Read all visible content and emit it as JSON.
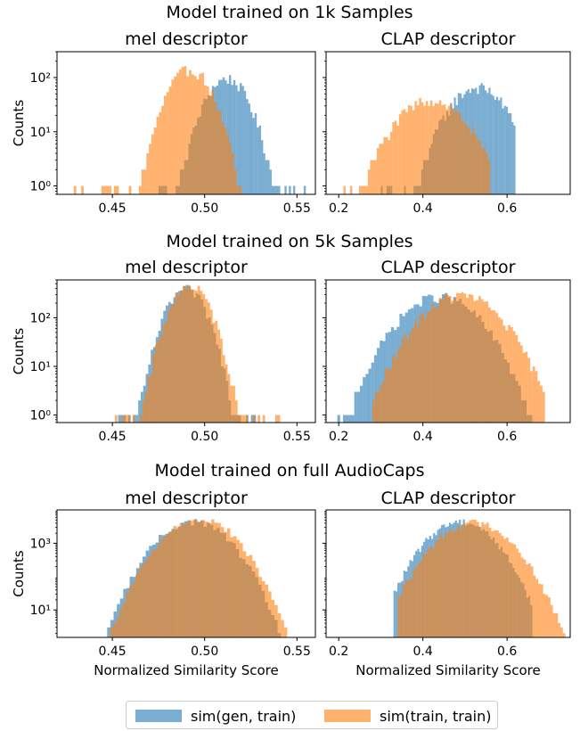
{
  "legend": {
    "gen_label": "sim(gen, train)",
    "train_label": "sim(train, train)"
  },
  "colors": {
    "gen": "#1f77b4",
    "train": "#ff7f0e",
    "overlap": "#a08062"
  },
  "chart_data": [
    {
      "type": "histogram",
      "row_title": "Model trained on 1k Samples",
      "title": "mel descriptor",
      "xlabel": "",
      "ylabel": "Counts",
      "y_scale": "log",
      "xlim": [
        0.42,
        0.56
      ],
      "ylim": [
        0.7,
        300
      ],
      "xticks": [
        0.45,
        0.5,
        0.55
      ],
      "xtick_labels": [
        "0.45",
        "0.50",
        "0.55"
      ],
      "yticks": [
        1,
        10,
        100
      ],
      "ytick_labels": [
        "10⁰",
        "10¹",
        "10²"
      ],
      "series": [
        {
          "name": "sim(gen, train)",
          "dist": "normal",
          "mean": 0.512,
          "sd": 0.0085,
          "peak": 95,
          "min": 0.475,
          "max": 0.556
        },
        {
          "name": "sim(train, train)",
          "dist": "normal",
          "mean": 0.492,
          "sd": 0.0085,
          "peak": 140,
          "min": 0.425,
          "max": 0.52
        }
      ]
    },
    {
      "type": "histogram",
      "title": "CLAP descriptor",
      "xlabel": "",
      "ylabel": "",
      "y_scale": "log",
      "xlim": [
        0.17,
        0.75
      ],
      "ylim": [
        0.7,
        300
      ],
      "xticks": [
        0.2,
        0.4,
        0.6
      ],
      "xtick_labels": [
        "0.2",
        "0.4",
        "0.6"
      ],
      "yticks": [
        1,
        10,
        100
      ],
      "ytick_labels": [
        "",
        "",
        ""
      ],
      "series": [
        {
          "name": "sim(gen, train)",
          "dist": "normal",
          "mean": 0.53,
          "sd": 0.05,
          "peak": 65,
          "min": 0.3,
          "max": 0.62
        },
        {
          "name": "sim(train, train)",
          "dist": "normal",
          "mean": 0.42,
          "sd": 0.06,
          "peak": 38,
          "min": 0.19,
          "max": 0.56
        }
      ]
    },
    {
      "type": "histogram",
      "row_title": "Model trained on 5k Samples",
      "title": "mel descriptor",
      "xlabel": "",
      "ylabel": "Counts",
      "y_scale": "log",
      "xlim": [
        0.42,
        0.56
      ],
      "ylim": [
        0.7,
        600
      ],
      "xticks": [
        0.45,
        0.5,
        0.55
      ],
      "xtick_labels": [
        "0.45",
        "0.50",
        "0.55"
      ],
      "yticks": [
        1,
        10,
        100
      ],
      "ytick_labels": [
        "10⁰",
        "10¹",
        "10²"
      ],
      "series": [
        {
          "name": "sim(gen, train)",
          "dist": "normal",
          "mean": 0.49,
          "sd": 0.0075,
          "peak": 380,
          "min": 0.445,
          "max": 0.54
        },
        {
          "name": "sim(train, train)",
          "dist": "normal",
          "mean": 0.492,
          "sd": 0.0075,
          "peak": 450,
          "min": 0.45,
          "max": 0.545
        }
      ]
    },
    {
      "type": "histogram",
      "title": "CLAP descriptor",
      "xlabel": "",
      "ylabel": "",
      "y_scale": "log",
      "xlim": [
        0.17,
        0.75
      ],
      "ylim": [
        0.7,
        600
      ],
      "xticks": [
        0.2,
        0.4,
        0.6
      ],
      "xtick_labels": [
        "0.2",
        "0.4",
        "0.6"
      ],
      "yticks": [
        1,
        10,
        100
      ],
      "ytick_labels": [
        "",
        "",
        ""
      ],
      "series": [
        {
          "name": "sim(gen, train)",
          "dist": "normal",
          "mean": 0.44,
          "sd": 0.065,
          "peak": 270,
          "min": 0.19,
          "max": 0.66
        },
        {
          "name": "sim(train, train)",
          "dist": "normal",
          "mean": 0.49,
          "sd": 0.065,
          "peak": 290,
          "min": 0.28,
          "max": 0.69
        }
      ]
    },
    {
      "type": "histogram",
      "row_title": "Model trained on full AudioCaps",
      "title": "mel descriptor",
      "xlabel": "Normalized Similarity Score",
      "ylabel": "Counts",
      "y_scale": "log",
      "xlim": [
        0.42,
        0.56
      ],
      "ylim": [
        1.5,
        10000
      ],
      "xticks": [
        0.45,
        0.5,
        0.55
      ],
      "xtick_labels": [
        "0.45",
        "0.50",
        "0.55"
      ],
      "yticks": [
        10,
        1000
      ],
      "ytick_labels": [
        "10¹",
        "10³"
      ],
      "series": [
        {
          "name": "sim(gen, train)",
          "dist": "normal",
          "mean": 0.494,
          "sd": 0.012,
          "peak": 4500,
          "min": 0.428,
          "max": 0.55
        },
        {
          "name": "sim(train, train)",
          "dist": "normal",
          "mean": 0.497,
          "sd": 0.012,
          "peak": 5500,
          "min": 0.435,
          "max": 0.555
        }
      ]
    },
    {
      "type": "histogram",
      "title": "CLAP descriptor",
      "xlabel": "Normalized Similarity Score",
      "ylabel": "",
      "y_scale": "log",
      "xlim": [
        0.17,
        0.75
      ],
      "ylim": [
        1.5,
        10000
      ],
      "xticks": [
        0.2,
        0.4,
        0.6
      ],
      "xtick_labels": [
        "0.2",
        "0.4",
        "0.6"
      ],
      "yticks": [
        10,
        1000
      ],
      "ytick_labels": [
        "",
        ""
      ],
      "series": [
        {
          "name": "sim(gen, train)",
          "dist": "normal",
          "mean": 0.49,
          "sd": 0.05,
          "peak": 4500,
          "min": 0.33,
          "max": 0.66
        },
        {
          "name": "sim(train, train)",
          "dist": "normal",
          "mean": 0.52,
          "sd": 0.055,
          "peak": 4200,
          "min": 0.34,
          "max": 0.75
        }
      ]
    }
  ]
}
